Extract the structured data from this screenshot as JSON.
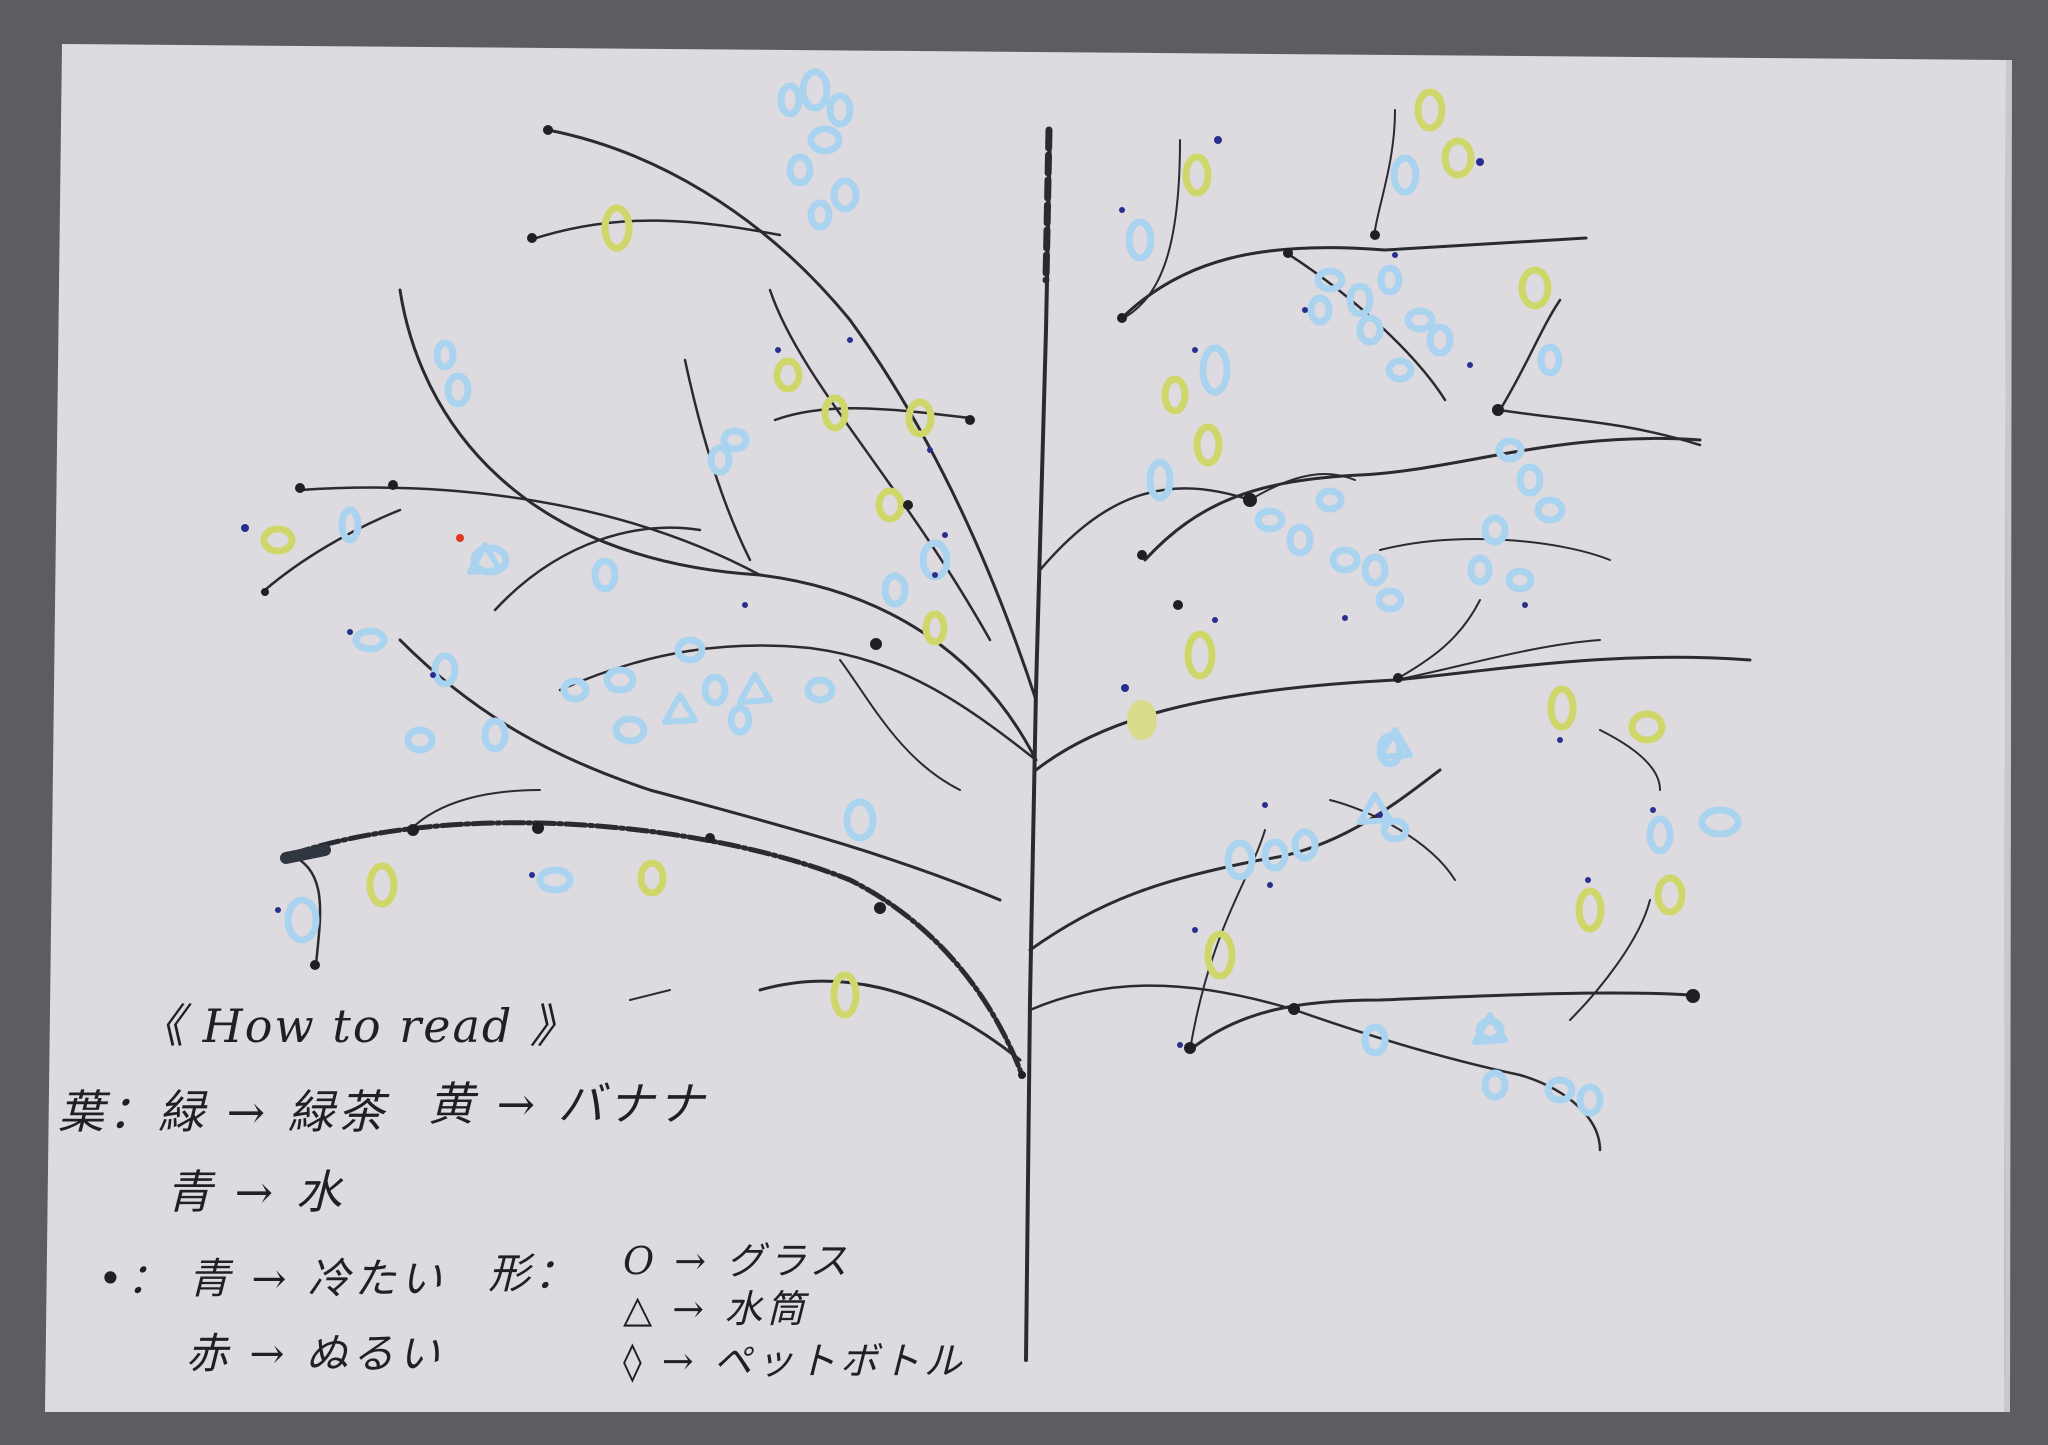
{
  "legend": {
    "title": "《 How to read 》",
    "leaf_prefix": "葉：",
    "leaf_green": "緑 → 緑茶",
    "leaf_yellow": "黄 → バナナ",
    "leaf_blue": "青 → 水",
    "dot_prefix": "•：",
    "dot_blue": "青 → 冷たい",
    "dot_red": "赤 → ぬるい",
    "shape_prefix": "形：",
    "shape_circle": "O → グラス",
    "shape_triangle": "△ → 水筒",
    "shape_diamond": "◊ → ペットボトル"
  },
  "colors": {
    "background": "#5b5d62",
    "paper": "#dddbe0",
    "ink": "#1f2024",
    "leaf_blue": "#a9d3ef",
    "leaf_yellow": "#cfd76a",
    "dot_blue": "#2a2f8f",
    "dot_red": "#e0381e"
  }
}
